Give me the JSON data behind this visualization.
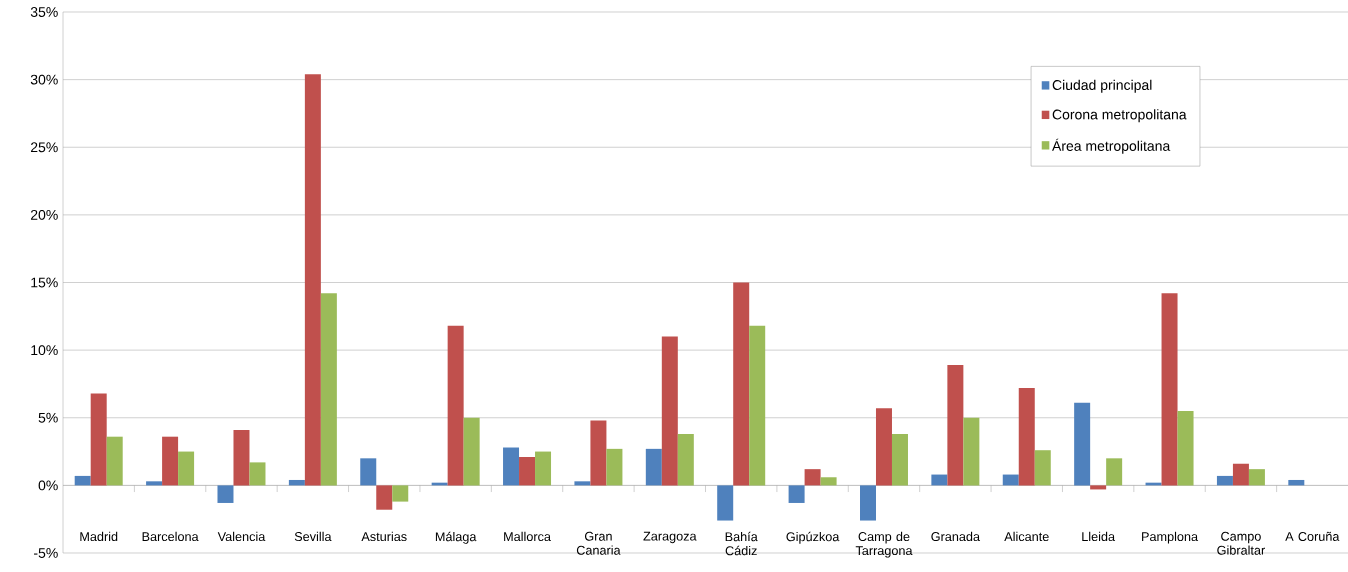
{
  "chart_data": {
    "type": "bar",
    "categories": [
      "Madrid",
      "Barcelona",
      "Valencia",
      "Sevilla",
      "Asturias",
      "Málaga",
      "Mallorca",
      "Gran Canaria",
      "Zaragoza",
      "Bahía Cádiz",
      "Gipúzkoa",
      "Camp de Tarragona",
      "Granada",
      "Alicante",
      "Lleida",
      "Pamplona",
      "Campo Gibraltar",
      "A Coruña"
    ],
    "series": [
      {
        "name": "Ciudad principal",
        "color": "#4f81bd",
        "values": [
          0.7,
          0.3,
          -1.3,
          0.4,
          2.0,
          0.2,
          2.8,
          0.3,
          2.7,
          -2.6,
          -1.3,
          -2.6,
          0.8,
          0.8,
          6.1,
          0.2,
          0.7,
          0.4
        ]
      },
      {
        "name": "Corona metropolitana",
        "color": "#c0504d",
        "values": [
          6.8,
          3.6,
          4.1,
          30.4,
          -1.8,
          11.8,
          2.1,
          4.8,
          11.0,
          15.0,
          1.2,
          5.7,
          8.9,
          7.2,
          -0.3,
          14.2,
          1.6,
          null
        ]
      },
      {
        "name": "Área metropolitana",
        "color": "#9bbb59",
        "values": [
          3.6,
          2.5,
          1.7,
          14.2,
          -1.2,
          5.0,
          2.5,
          2.7,
          3.8,
          11.8,
          0.6,
          3.8,
          5.0,
          2.6,
          2.0,
          5.5,
          1.2,
          null
        ]
      }
    ],
    "ylim": [
      -5,
      35
    ],
    "yticks": [
      {
        "value": -5,
        "label": "-5%"
      },
      {
        "value": 0,
        "label": "0%"
      },
      {
        "value": 5,
        "label": "5%"
      },
      {
        "value": 10,
        "label": "10%"
      },
      {
        "value": 15,
        "label": "15%"
      },
      {
        "value": 20,
        "label": "20%"
      },
      {
        "value": 25,
        "label": "25%"
      },
      {
        "value": 30,
        "label": "30%"
      },
      {
        "value": 35,
        "label": "35%"
      }
    ],
    "grid": "y",
    "legend": "top right"
  }
}
